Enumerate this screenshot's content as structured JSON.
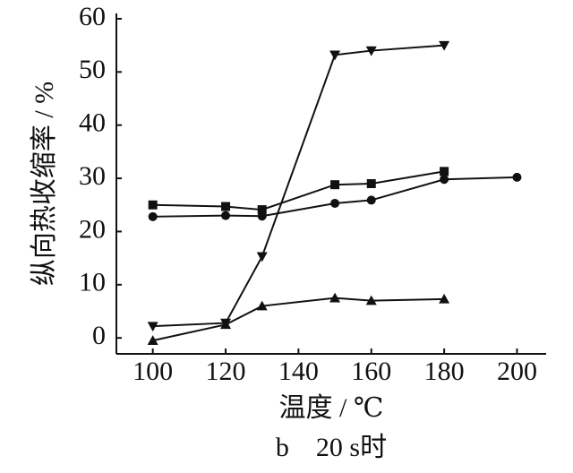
{
  "chart_data": {
    "type": "line",
    "x_label": "温度 / ℃",
    "y_label": "纵向热收缩率 / %",
    "caption": "b　20 s时",
    "x": [
      100,
      120,
      130,
      150,
      160,
      180,
      200
    ],
    "series": [
      {
        "color": "#111111",
        "marker": "square",
        "values": [
          25,
          24.7,
          24.1,
          28.8,
          29,
          31.3,
          null
        ]
      },
      {
        "color": "#111111",
        "marker": "circle",
        "values": [
          22.8,
          23,
          22.9,
          25.3,
          25.9,
          29.8,
          30.2
        ]
      },
      {
        "color": "#111111",
        "marker": "triangle-down",
        "values": [
          2.2,
          2.8,
          15.3,
          53.2,
          54,
          55,
          null
        ]
      },
      {
        "color": "#111111",
        "marker": "triangle-up",
        "values": [
          -0.5,
          2.5,
          6,
          7.5,
          7,
          7.3,
          null
        ]
      }
    ],
    "xlim": [
      90,
      208
    ],
    "xticks": [
      100,
      120,
      140,
      160,
      180,
      200
    ],
    "ylim": [
      -3,
      61
    ],
    "yticks": [
      0,
      10,
      20,
      30,
      40,
      50,
      60
    ],
    "grid": false
  }
}
